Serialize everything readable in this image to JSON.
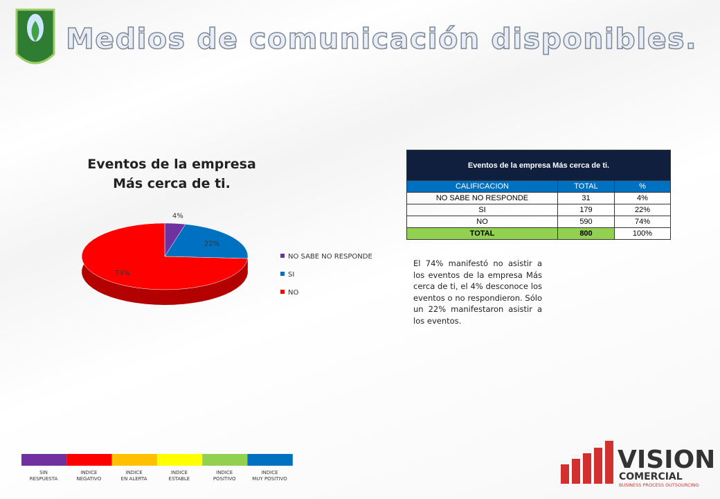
{
  "header": {
    "title": "Medios de comunicación disponibles."
  },
  "chart_data": {
    "type": "pie",
    "title_lines": [
      "Eventos de la empresa",
      "Más cerca de ti."
    ],
    "categories": [
      "NO SABE NO RESPONDE",
      "SI",
      "NO"
    ],
    "values": [
      4,
      22,
      74
    ],
    "value_labels": [
      "4%",
      "22%",
      "74%"
    ],
    "colors": [
      "#7030a0",
      "#0070c0",
      "#ff0000"
    ],
    "legend": "right"
  },
  "table": {
    "title": "Eventos de la empresa Más cerca de ti.",
    "header": [
      "CALIFICACION",
      "TOTAL",
      "%"
    ],
    "rows": [
      [
        "NO SABE NO RESPONDE",
        "31",
        "4%"
      ],
      [
        "SI",
        "179",
        "22%"
      ],
      [
        "NO",
        "590",
        "74%"
      ],
      [
        "TOTAL",
        "800",
        "100%"
      ]
    ]
  },
  "note": "El 74% manifestó no asistir a los eventos de la empresa Más cerca de ti, el 4% desconoce los eventos o no respondieron. Sólo un 22% manifestaron asistir a los eventos.",
  "scale": {
    "colors": [
      "#7030a0",
      "#ff0000",
      "#ffc000",
      "#ffff00",
      "#92d050",
      "#0070c0"
    ],
    "labels": [
      "SIN RESPUESTA",
      "INDICE NEGATIVO",
      "INDICE EN ALERTA",
      "INDICE ESTABLE",
      "INDICE POSITIVO",
      "INDICE MUY POSITIVO"
    ]
  },
  "logo": {
    "name": "VISION",
    "line2": "COMERCIAL",
    "tagline": "BUSINESS PROCESS OUTSOURCING"
  }
}
